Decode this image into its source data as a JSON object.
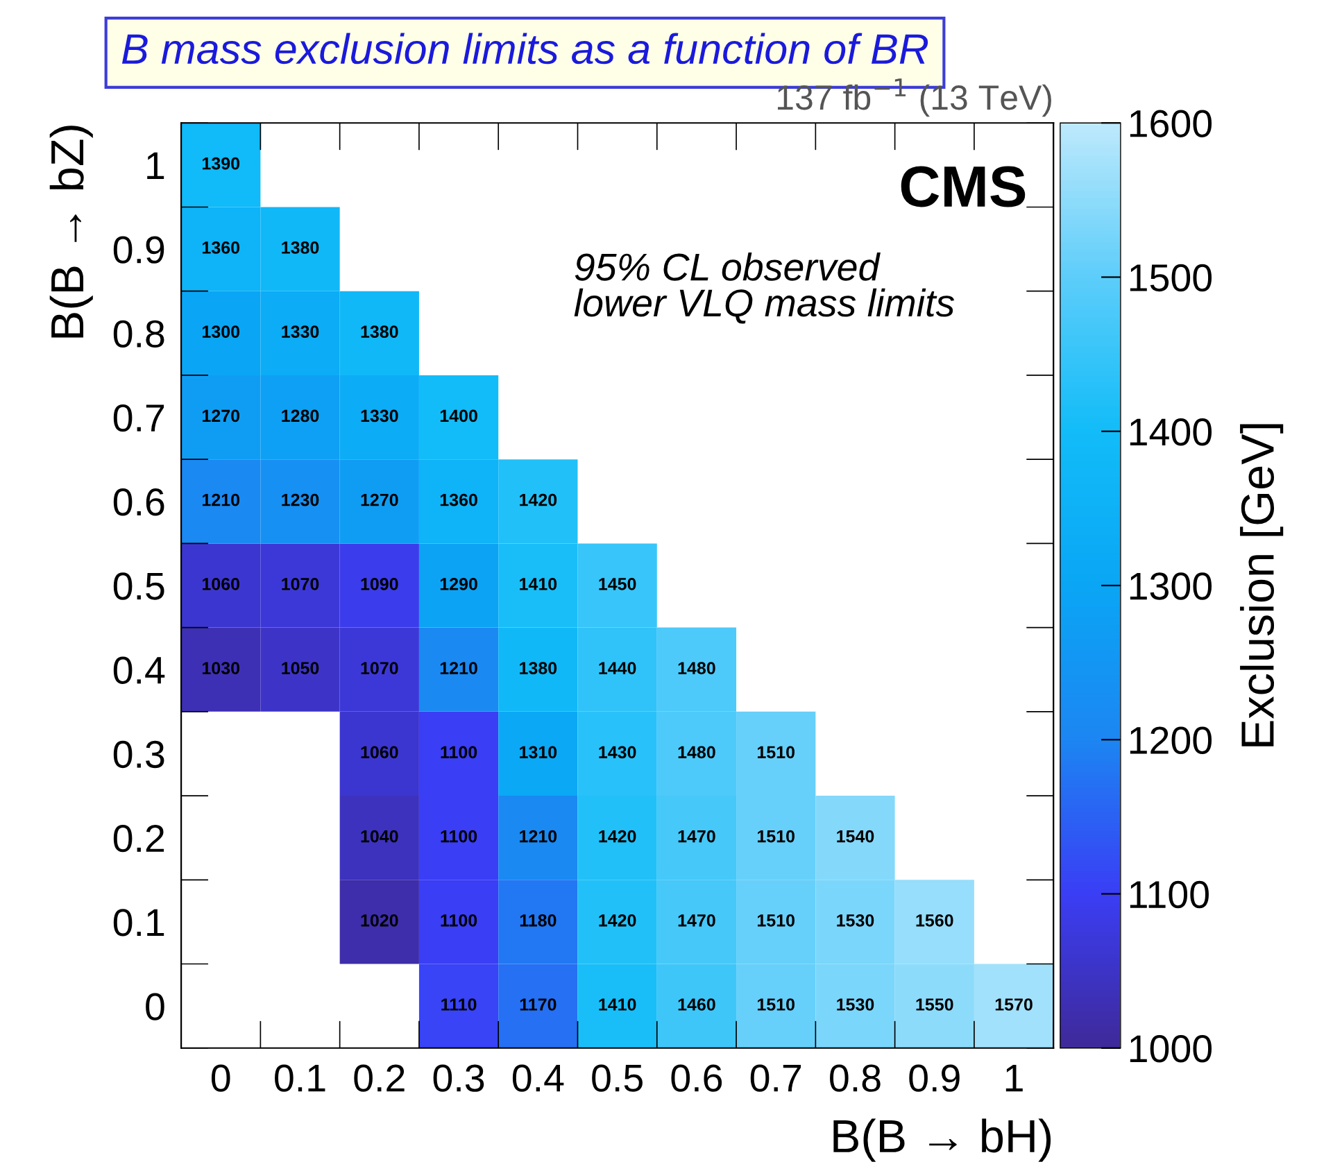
{
  "chart_data": {
    "type": "heatmap",
    "title": "B mass exclusion limits as a function of BR",
    "xlabel": "B(B → bH)",
    "ylabel": "B(B → bZ)",
    "clabel": "Exclusion [GeV]",
    "annotations": [
      "137 fb$^{−1}$ (13 TeV)",
      "CMS",
      "95% CL observed\nlower VLQ mass limits"
    ],
    "categories": [
      "0",
      "0.1",
      "0.2",
      "0.3",
      "0.4",
      "0.5",
      "0.6",
      "0.7",
      "0.8",
      "0.9",
      "1"
    ],
    "y_categories": [
      "1",
      "0.9",
      "0.8",
      "0.7",
      "0.6",
      "0.5",
      "0.4",
      "0.3",
      "0.2",
      "0.1",
      "0"
    ],
    "cells": [
      [
        1390,
        null,
        null,
        null,
        null,
        null,
        null,
        null,
        null,
        null,
        null
      ],
      [
        1360,
        1380,
        null,
        null,
        null,
        null,
        null,
        null,
        null,
        null,
        null
      ],
      [
        1300,
        1330,
        1380,
        null,
        null,
        null,
        null,
        null,
        null,
        null,
        null
      ],
      [
        1270,
        1280,
        1330,
        1400,
        null,
        null,
        null,
        null,
        null,
        null,
        null
      ],
      [
        1210,
        1230,
        1270,
        1360,
        1420,
        null,
        null,
        null,
        null,
        null,
        null
      ],
      [
        1060,
        1070,
        1090,
        1290,
        1410,
        1450,
        null,
        null,
        null,
        null,
        null
      ],
      [
        1030,
        1050,
        1070,
        1210,
        1380,
        1440,
        1480,
        null,
        null,
        null,
        null
      ],
      [
        null,
        null,
        1060,
        1100,
        1310,
        1430,
        1480,
        1510,
        null,
        null,
        null
      ],
      [
        null,
        null,
        1040,
        1100,
        1210,
        1420,
        1470,
        1510,
        1540,
        null,
        null
      ],
      [
        null,
        null,
        1020,
        1100,
        1180,
        1420,
        1470,
        1510,
        1530,
        1560,
        null
      ],
      [
        null,
        null,
        null,
        1110,
        1170,
        1410,
        1460,
        1510,
        1530,
        1550,
        1570
      ]
    ],
    "clim": [
      1000,
      1600
    ],
    "cticks": [
      1000,
      1100,
      1200,
      1300,
      1400,
      1500,
      1600
    ],
    "data_labels": true
  }
}
